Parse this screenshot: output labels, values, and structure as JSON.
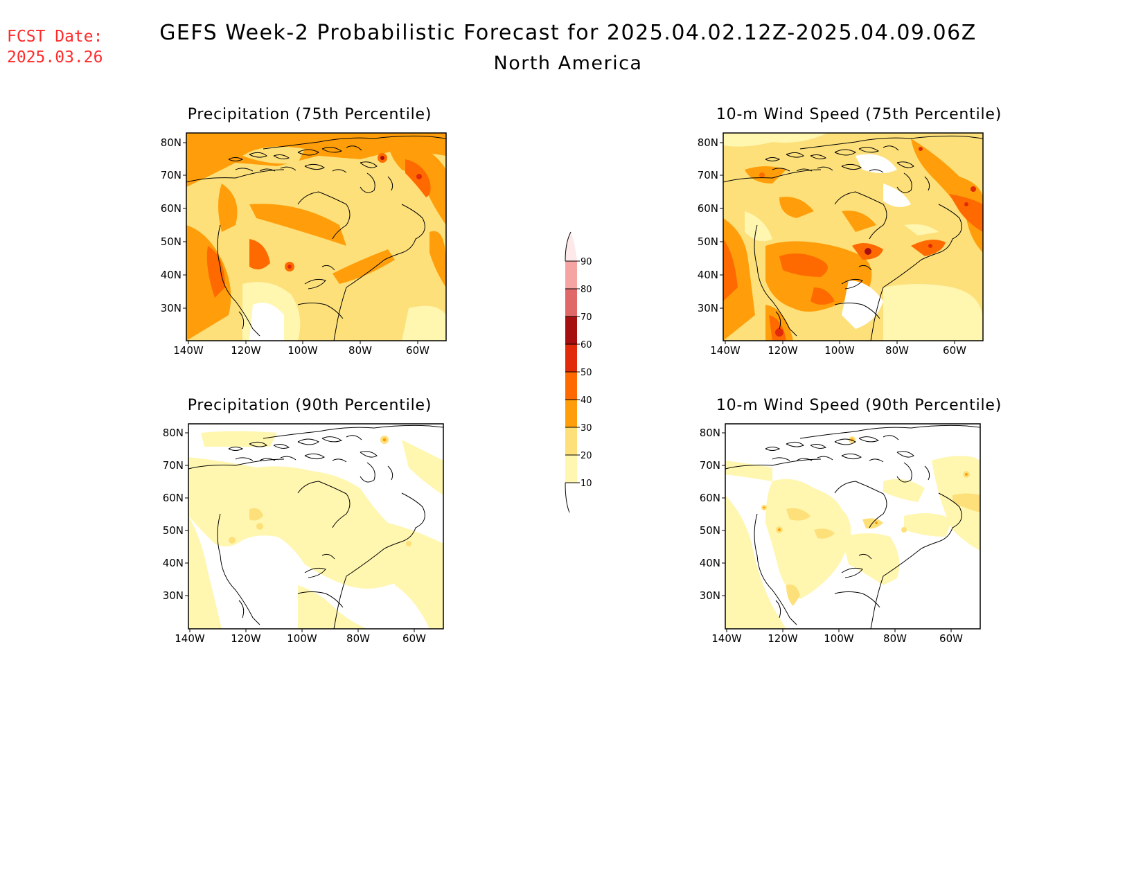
{
  "header": {
    "fcst_label": "FCST Date:",
    "fcst_date": "2025.03.26",
    "title": "GEFS Week-2 Probabilistic Forecast for 2025.04.02.12Z-2025.04.09.06Z",
    "subtitle": "North America"
  },
  "axes": {
    "lat_ticks": [
      "80N",
      "70N",
      "60N",
      "50N",
      "40N",
      "30N"
    ],
    "lon_ticks": [
      "140W",
      "120W",
      "100W",
      "80W",
      "60W"
    ]
  },
  "panels": [
    {
      "id": "precip75",
      "title": "Precipitation (75th Percentile)"
    },
    {
      "id": "wind75",
      "title": "10-m Wind Speed (75th Percentile)"
    },
    {
      "id": "precip90",
      "title": "Precipitation (90th Percentile)"
    },
    {
      "id": "wind90",
      "title": "10-m Wind Speed (90th Percentile)"
    }
  ],
  "colorbar": {
    "labels": [
      "90",
      "80",
      "70",
      "60",
      "50",
      "40",
      "30",
      "20",
      "10"
    ],
    "colors": [
      "#f5a3a3",
      "#e06868",
      "#a50f0f",
      "#e02a0a",
      "#ff6a00",
      "#ff9e0a",
      "#fde07a",
      "#fff6b0"
    ]
  },
  "colors": {
    "fcst_text": "#ff2a2a",
    "level_10_20": "#fff6b0",
    "level_20_30": "#fde07a",
    "level_30_40": "#ff9e0a",
    "level_40_50": "#ff6a00",
    "level_50_60": "#e02a0a",
    "level_60_70": "#a50f0f"
  }
}
